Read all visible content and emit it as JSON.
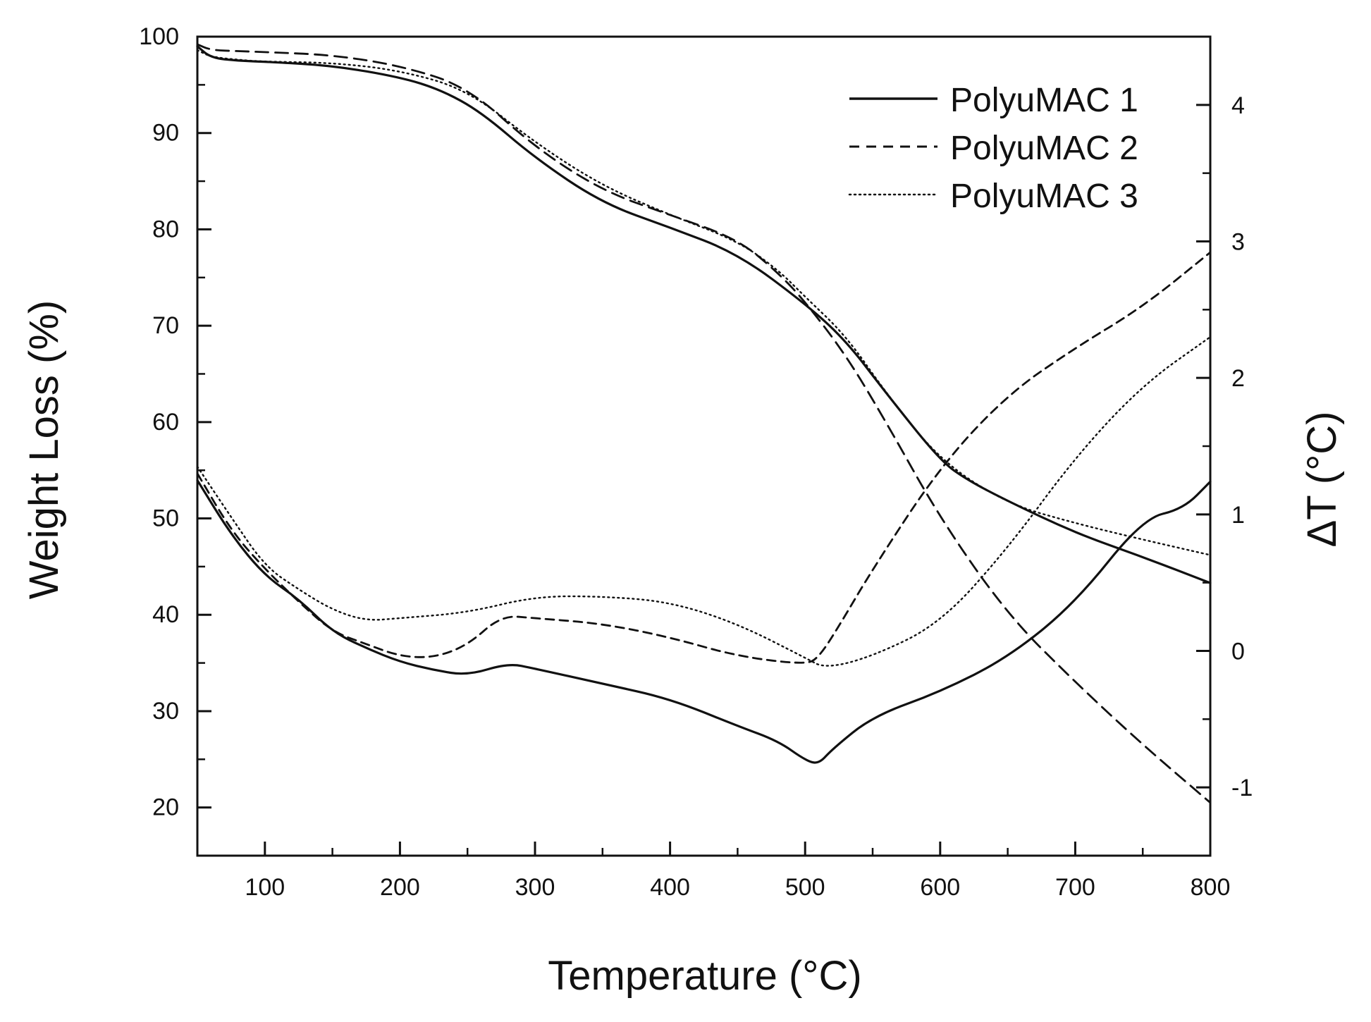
{
  "chart_data": {
    "type": "line",
    "title": "",
    "xlabel": "Temperature (°C)",
    "ylabel_left": "Weight Loss (%)",
    "ylabel_right": "ΔT (°C)",
    "xlim": [
      50,
      800
    ],
    "ylim_left": [
      15,
      100
    ],
    "ylim_right": [
      -1.5,
      4.5
    ],
    "x_ticks": [
      "100",
      "200",
      "300",
      "400",
      "500",
      "600",
      "700",
      "800"
    ],
    "y_left_ticks": [
      "100",
      "90",
      "80",
      "70",
      "60",
      "50",
      "40",
      "30",
      "20"
    ],
    "y_right_ticks": [
      "4",
      "3",
      "2",
      "1",
      "0",
      "-1"
    ],
    "grid": false,
    "legend_position": "top-right",
    "legend": [
      {
        "label": "PolyuMAC 1",
        "style": "solid"
      },
      {
        "label": "PolyuMAC 2",
        "style": "dashed"
      },
      {
        "label": "PolyuMAC 3",
        "style": "dotted"
      }
    ],
    "series": [
      {
        "name": "PolyuMAC 1",
        "kind": "weight_loss",
        "axis": "left",
        "style": "solid",
        "color": "#111111",
        "x": [
          50,
          60,
          80,
          100,
          150,
          200,
          230,
          260,
          300,
          350,
          400,
          450,
          500,
          530,
          560,
          600,
          620,
          650,
          700,
          750,
          800
        ],
        "y": [
          99,
          97.8,
          97.5,
          97.4,
          97.0,
          95.8,
          94.5,
          92.2,
          87.4,
          82.7,
          80.2,
          77.5,
          72.3,
          68.5,
          63.0,
          56.0,
          54.0,
          51.8,
          48.5,
          46.0,
          43.3
        ]
      },
      {
        "name": "PolyuMAC 2",
        "kind": "weight_loss",
        "axis": "left",
        "style": "dashed",
        "color": "#111111",
        "x": [
          50,
          60,
          80,
          100,
          150,
          200,
          250,
          300,
          350,
          400,
          450,
          480,
          500,
          530,
          560,
          600,
          650,
          700,
          750,
          800
        ],
        "y": [
          99.2,
          98.6,
          98.5,
          98.4,
          98.1,
          97.0,
          94.8,
          88.5,
          84.0,
          81.5,
          79.0,
          75.5,
          72.5,
          67.0,
          60.0,
          50.0,
          40.0,
          33.0,
          26.5,
          20.5
        ]
      },
      {
        "name": "PolyuMAC 3",
        "kind": "weight_loss",
        "axis": "left",
        "style": "dotted",
        "color": "#111111",
        "x": [
          50,
          60,
          80,
          100,
          150,
          200,
          250,
          300,
          350,
          400,
          450,
          480,
          500,
          530,
          560,
          600,
          650,
          700,
          750,
          800
        ],
        "y": [
          98.6,
          97.9,
          97.6,
          97.4,
          97.3,
          96.5,
          94.5,
          89.0,
          84.5,
          81.5,
          78.8,
          75.8,
          73.0,
          69.0,
          63.0,
          56.0,
          51.5,
          49.5,
          47.8,
          46.2
        ]
      },
      {
        "name": "PolyuMAC 1",
        "kind": "delta_t",
        "axis": "right",
        "style": "solid",
        "color": "#111111",
        "x": [
          50,
          75,
          100,
          125,
          150,
          175,
          200,
          225,
          250,
          280,
          300,
          350,
          400,
          450,
          480,
          500,
          510,
          520,
          550,
          600,
          650,
          700,
          750,
          780,
          800
        ],
        "y": [
          1.25,
          0.85,
          0.55,
          0.38,
          0.14,
          0.02,
          -0.08,
          -0.14,
          -0.18,
          -0.09,
          -0.13,
          -0.24,
          -0.35,
          -0.55,
          -0.66,
          -0.8,
          -0.83,
          -0.72,
          -0.48,
          -0.3,
          -0.05,
          0.35,
          0.97,
          1.04,
          1.24
        ]
      },
      {
        "name": "PolyuMAC 2",
        "kind": "delta_t",
        "axis": "right",
        "style": "dashed",
        "color": "#111111",
        "x": [
          50,
          75,
          100,
          125,
          150,
          175,
          200,
          225,
          250,
          275,
          300,
          350,
          400,
          450,
          500,
          510,
          525,
          550,
          600,
          650,
          700,
          750,
          800
        ],
        "y": [
          1.3,
          0.88,
          0.6,
          0.36,
          0.14,
          0.05,
          -0.04,
          -0.05,
          0.04,
          0.26,
          0.24,
          0.2,
          0.1,
          -0.04,
          -0.1,
          -0.05,
          0.18,
          0.6,
          1.35,
          1.88,
          2.22,
          2.52,
          2.92
        ]
      },
      {
        "name": "PolyuMAC 3",
        "kind": "delta_t",
        "axis": "right",
        "style": "dotted",
        "color": "#111111",
        "x": [
          50,
          75,
          100,
          125,
          150,
          175,
          200,
          250,
          300,
          350,
          400,
          450,
          500,
          515,
          550,
          600,
          650,
          700,
          750,
          800
        ],
        "y": [
          1.35,
          0.98,
          0.62,
          0.45,
          0.3,
          0.22,
          0.24,
          0.28,
          0.4,
          0.4,
          0.36,
          0.2,
          -0.05,
          -0.13,
          -0.04,
          0.2,
          0.75,
          1.42,
          1.95,
          2.3
        ]
      }
    ]
  }
}
